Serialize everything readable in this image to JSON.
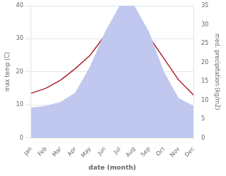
{
  "chart_data": {
    "type": "line",
    "categories": [
      "Jan",
      "Feb",
      "Mar",
      "Apr",
      "May",
      "Jun",
      "Jul",
      "Aug",
      "Sep",
      "Oct",
      "Nov",
      "Dec"
    ],
    "series": [
      {
        "type": "area",
        "color": "#c0c8f0",
        "axis": "y2",
        "values": [
          8.0,
          8.5,
          9.5,
          12.0,
          19.0,
          28.0,
          35.0,
          35.0,
          28.0,
          17.5,
          10.5,
          8.5
        ]
      },
      {
        "type": "line",
        "color": "#aa2233",
        "axis": "y",
        "values": [
          13.5,
          15.0,
          17.5,
          21.0,
          25.0,
          31.0,
          31.5,
          38.5,
          30.5,
          24.0,
          17.5,
          13.0
        ]
      }
    ],
    "xlabel": "date (month)",
    "ylabel": "max temp (C)",
    "y2label": "med. precipitation (kg/m2)",
    "ylim": [
      0,
      40
    ],
    "yticks": [
      0,
      10,
      20,
      30,
      40
    ],
    "y2lim": [
      0,
      35
    ],
    "y2ticks": [
      0,
      5,
      10,
      15,
      20,
      25,
      30,
      35
    ],
    "grid": true
  }
}
